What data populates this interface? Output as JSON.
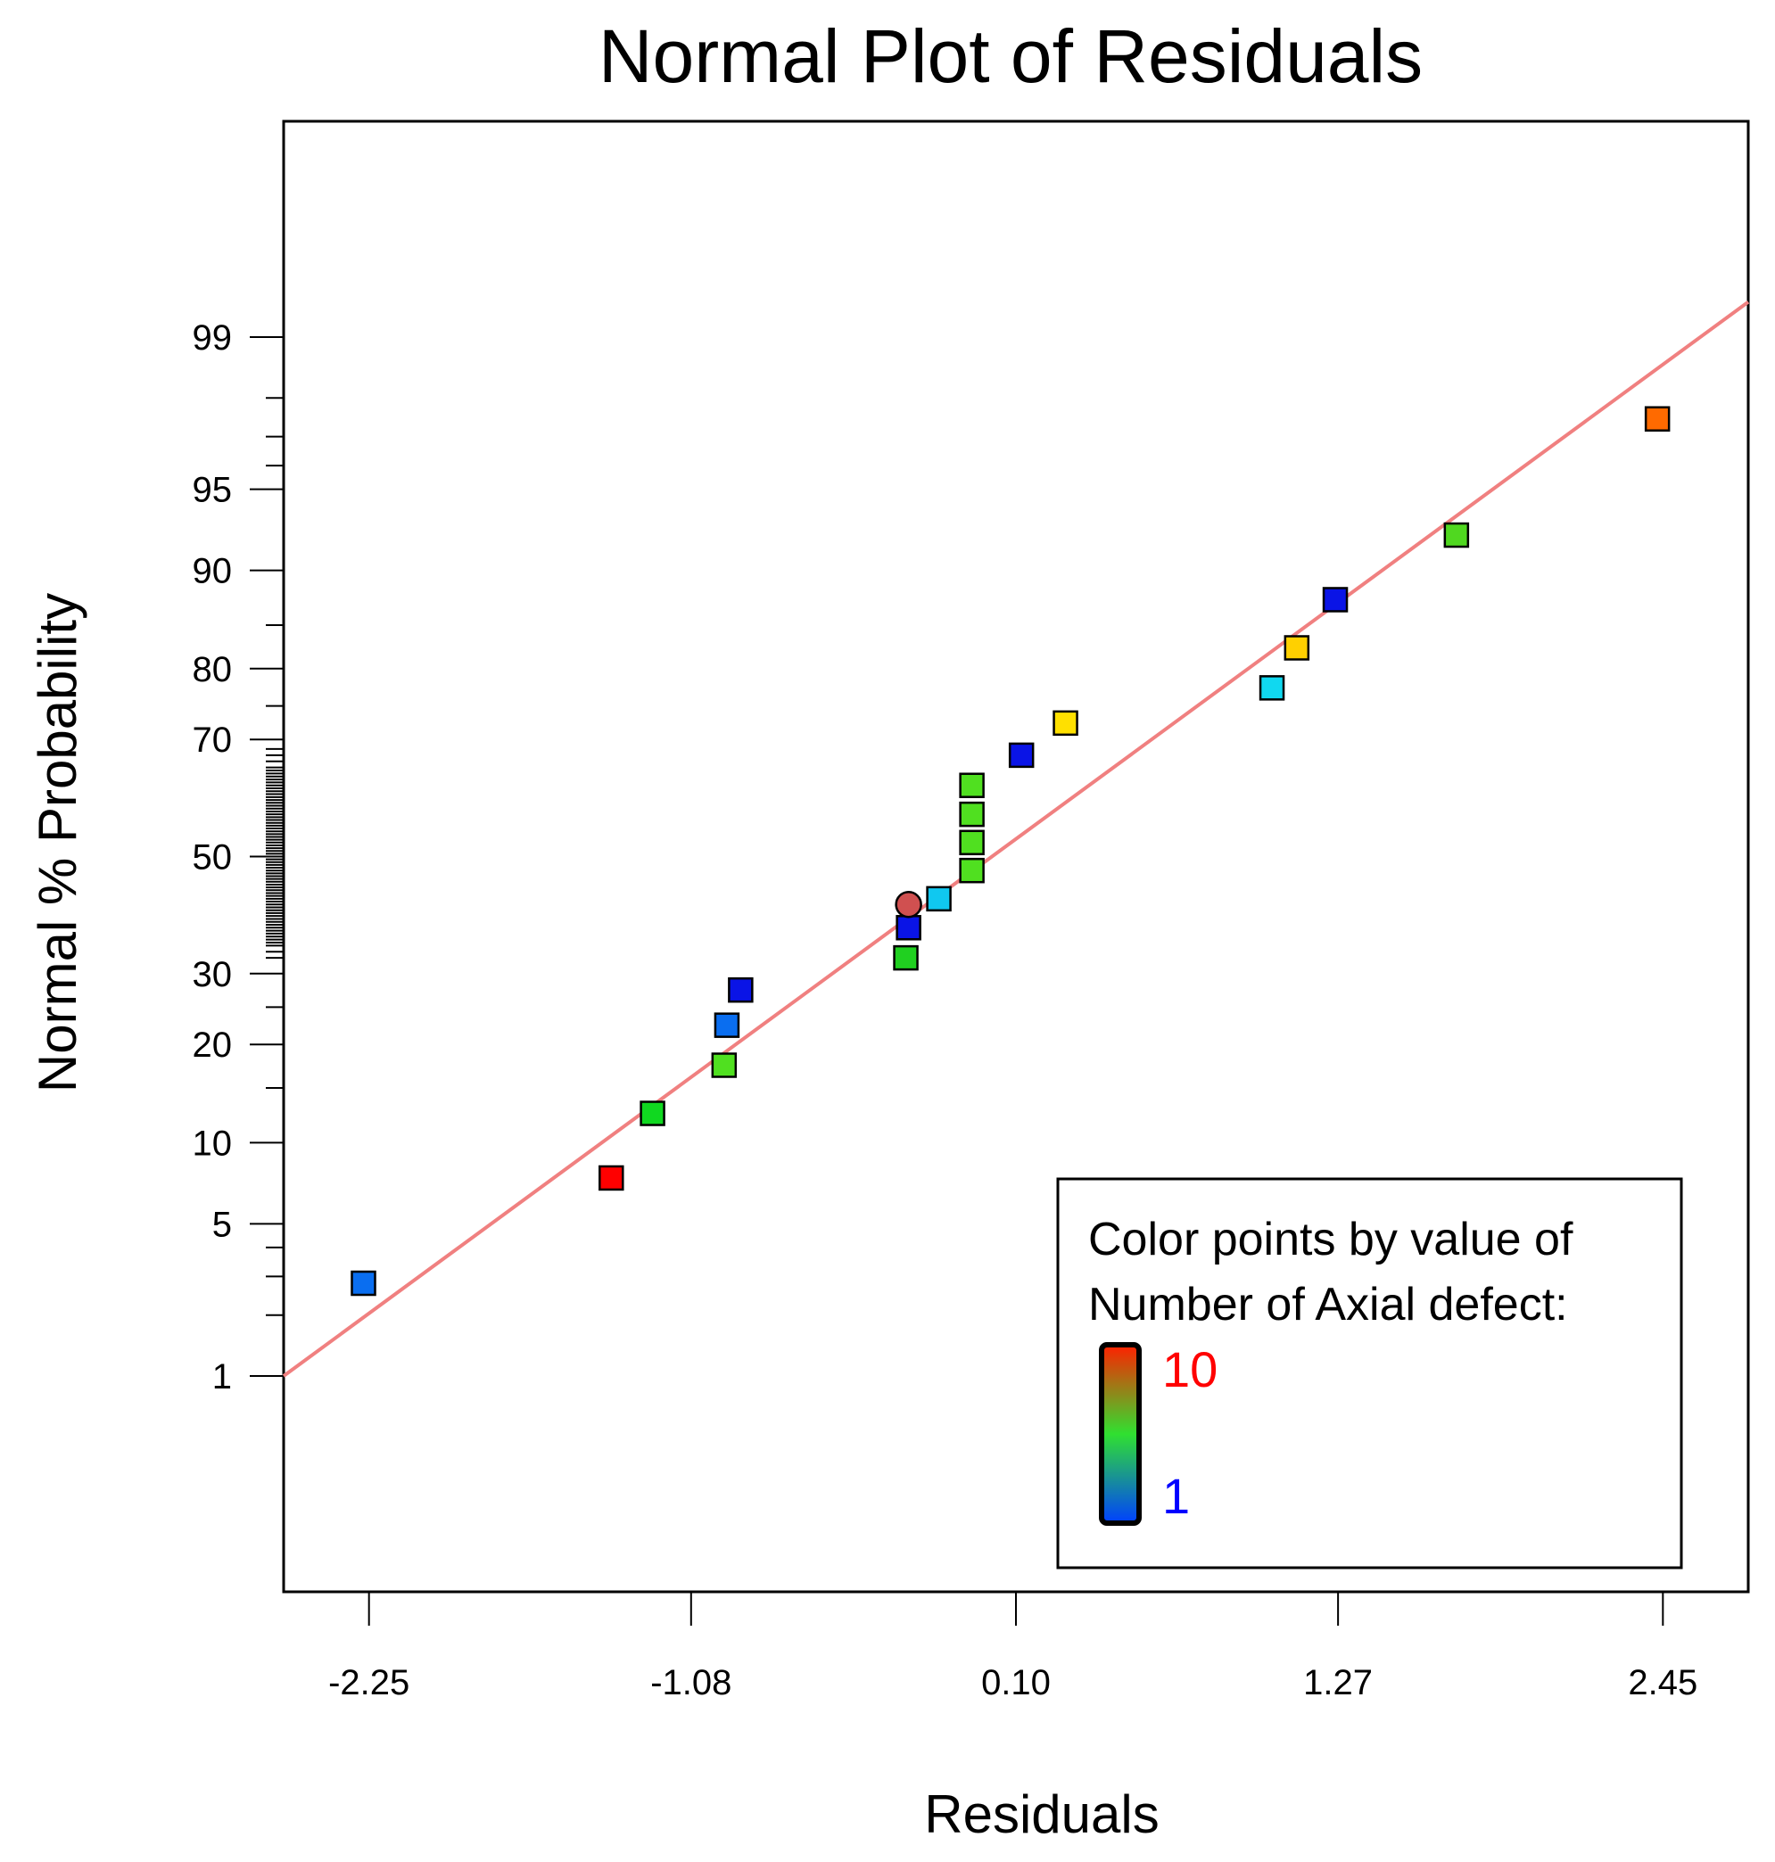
{
  "chart_data": {
    "type": "scatter",
    "title": "Normal Plot of Residuals",
    "xlabel": "Residuals",
    "ylabel": "Normal % Probability",
    "x_ticks": [
      "-2.25",
      "-1.08",
      "0.10",
      "1.27",
      "2.45"
    ],
    "x_tick_values": [
      -2.25,
      -1.08,
      0.1,
      1.27,
      2.45
    ],
    "xlim": [
      -2.56,
      2.76
    ],
    "y_scale": "normal-probability",
    "y_ticks": [
      "1",
      "5",
      "10",
      "20",
      "30",
      "50",
      "70",
      "80",
      "90",
      "95",
      "99"
    ],
    "y_tick_values": [
      1,
      5,
      10,
      20,
      30,
      50,
      70,
      80,
      90,
      95,
      99
    ],
    "ylim": [
      0.1,
      99.9
    ],
    "reference_line": {
      "color": "#f08080",
      "from": [
        -2.56,
        1.0
      ],
      "to": [
        2.76,
        99.35
      ]
    },
    "points": [
      {
        "x": -2.27,
        "p": 2.8,
        "marker": "square",
        "color": "#0a6ef0"
      },
      {
        "x": -1.37,
        "p": 7.5,
        "marker": "square",
        "color": "#ff0000"
      },
      {
        "x": -1.22,
        "p": 12.5,
        "marker": "square",
        "color": "#10d820"
      },
      {
        "x": -0.96,
        "p": 17.5,
        "marker": "square",
        "color": "#50e020"
      },
      {
        "x": -0.95,
        "p": 22.5,
        "marker": "square",
        "color": "#0a6ef0"
      },
      {
        "x": -0.9,
        "p": 27.5,
        "marker": "square",
        "color": "#0a14e6"
      },
      {
        "x": -0.3,
        "p": 32.5,
        "marker": "square",
        "color": "#20d020"
      },
      {
        "x": -0.29,
        "p": 37.5,
        "marker": "square",
        "color": "#0a14e6"
      },
      {
        "x": -0.29,
        "p": 41.5,
        "marker": "circle",
        "color": "#d05050"
      },
      {
        "x": -0.18,
        "p": 42.5,
        "marker": "square",
        "color": "#10c8f0"
      },
      {
        "x": -0.06,
        "p": 47.5,
        "marker": "square",
        "color": "#50e020"
      },
      {
        "x": -0.06,
        "p": 52.5,
        "marker": "square",
        "color": "#50e020"
      },
      {
        "x": -0.06,
        "p": 57.5,
        "marker": "square",
        "color": "#50e020"
      },
      {
        "x": -0.06,
        "p": 62.5,
        "marker": "square",
        "color": "#50e020"
      },
      {
        "x": 0.12,
        "p": 67.5,
        "marker": "square",
        "color": "#0a14e6"
      },
      {
        "x": 0.28,
        "p": 72.5,
        "marker": "square",
        "color": "#ffe000"
      },
      {
        "x": 1.03,
        "p": 77.5,
        "marker": "square",
        "color": "#10d8f0"
      },
      {
        "x": 1.12,
        "p": 82.5,
        "marker": "square",
        "color": "#ffd000"
      },
      {
        "x": 1.26,
        "p": 87.5,
        "marker": "square",
        "color": "#0a14e6"
      },
      {
        "x": 1.7,
        "p": 92.5,
        "marker": "square",
        "color": "#50d820"
      },
      {
        "x": 2.43,
        "p": 97.5,
        "marker": "square",
        "color": "#ff6a00"
      }
    ],
    "legend": {
      "position": "bottom-right",
      "line1": "Color points by value of",
      "line2": "Number of Axial defect:",
      "high_label": "10",
      "low_label": "1",
      "high_color": "#ff0000",
      "low_color": "#0000ff",
      "gradient_colors": [
        "#ff2000",
        "#30e030",
        "#0040ff"
      ]
    }
  }
}
